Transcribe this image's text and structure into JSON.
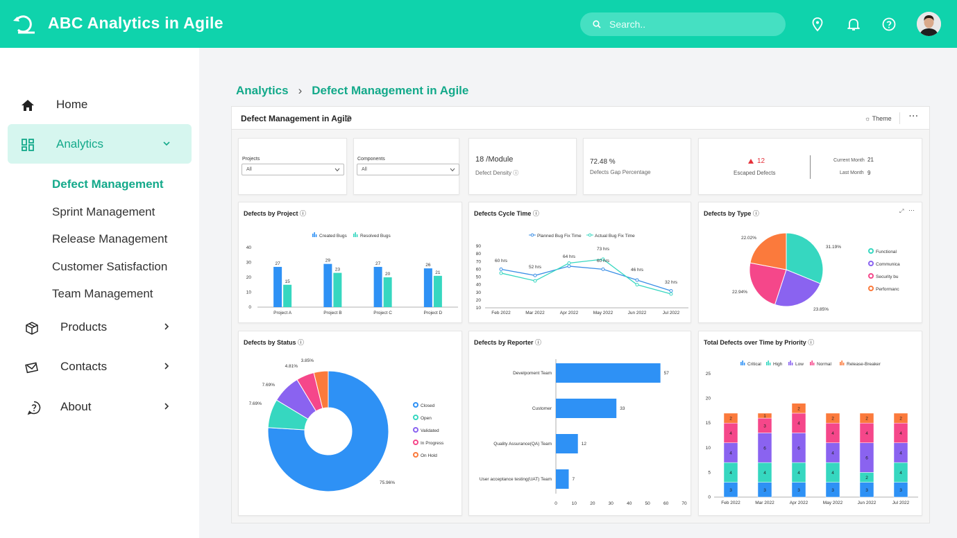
{
  "app": {
    "title": "ABC Analytics in Agile",
    "search_placeholder": "Search.."
  },
  "sidebar": {
    "home": "Home",
    "analytics": "Analytics",
    "sub": [
      "Defect Management",
      "Sprint Management",
      "Release Management",
      "Customer Satisfaction",
      "Team Management"
    ],
    "products": "Products",
    "contacts": "Contacts",
    "about": "About"
  },
  "breadcrumb": {
    "root": "Analytics",
    "sep": "›",
    "current": "Defect Management in Agile"
  },
  "dashboard": {
    "title": "Defect Management in Agile",
    "theme_label": "Theme",
    "more": "···"
  },
  "filters": {
    "projects_label": "Projects",
    "projects_value": "All",
    "components_label": "Components",
    "components_value": "All"
  },
  "kpis": {
    "density_value": "18 /Module",
    "density_label": "Defect Density",
    "gap_value": "72.48 %",
    "gap_label": "Defects Gap Percentage",
    "escaped_value": "12",
    "escaped_label": "Escaped Defects",
    "current_label": "Current Month",
    "current_value": "21",
    "last_label": "Last Month",
    "last_value": "9"
  },
  "colors": {
    "accent": "#0fd3ac",
    "blue": "#2e91f5",
    "teal": "#36d7c0",
    "purple": "#8a63f0",
    "pink": "#f5478a",
    "orange": "#fb7a3c"
  },
  "chart_data": [
    {
      "id": "by_project",
      "type": "bar",
      "title": "Defects by Project",
      "categories": [
        "Project A",
        "Project B",
        "Project C",
        "Project D"
      ],
      "series": [
        {
          "name": "Created Bugs",
          "values": [
            27,
            29,
            27,
            26
          ]
        },
        {
          "name": "Resolved Bugs",
          "values": [
            15,
            23,
            20,
            21
          ]
        }
      ],
      "ylim": [
        0,
        40
      ],
      "yticks": [
        0,
        10,
        20,
        30,
        40
      ]
    },
    {
      "id": "cycle_time",
      "type": "line",
      "title": "Defects Cycle Time",
      "categories": [
        "Feb 2022",
        "Mar 2022",
        "Apr 2022",
        "May 2022",
        "Jun 2022",
        "Jul 2022"
      ],
      "series": [
        {
          "name": "Planned Bug Fix Time",
          "values": [
            60,
            52,
            64,
            60,
            46,
            32
          ]
        },
        {
          "name": "Actual Bug Fix Time",
          "values": [
            55,
            45,
            68,
            73,
            40,
            28
          ]
        }
      ],
      "labels": [
        "60 hrs",
        "52 hrs",
        "64 hrs",
        "73 hrs",
        "60 hrs",
        "46 hrs",
        "32 hrs"
      ],
      "ylim": [
        10,
        90
      ],
      "yticks": [
        10,
        20,
        30,
        40,
        50,
        60,
        70,
        80,
        90
      ]
    },
    {
      "id": "by_type",
      "type": "pie",
      "title": "Defects by Type",
      "categories": [
        "Functional Defects",
        "Communication Defects",
        "Security bugs",
        "Performance Defects"
      ],
      "legend_labels": [
        "Functional",
        "Communica",
        "Security bu",
        "Performanc"
      ],
      "values": [
        31.19,
        23.85,
        22.94,
        22.02
      ],
      "value_labels": [
        "31.19%",
        "23.85%",
        "22.94%",
        "22.02%"
      ]
    },
    {
      "id": "by_status",
      "type": "pie",
      "title": "Defects by Status",
      "categories": [
        "Closed",
        "Open",
        "Validated",
        "In Progress",
        "On Hold"
      ],
      "values": [
        75.96,
        7.69,
        7.69,
        4.81,
        3.85
      ],
      "value_labels": [
        "75.96%",
        "7.69%",
        "7.69%",
        "4.81%",
        "3.85%"
      ]
    },
    {
      "id": "by_reporter",
      "type": "bar",
      "title": "Defects by Reporter",
      "categories": [
        "Development Team",
        "Customer",
        "Quality Assurance(QA) Team",
        "User acceptance testing(UAT) Team"
      ],
      "display_categories": [
        "Develpoment Team",
        "Customer",
        "Quality Assurance(QA) Team",
        "User acceptance testing(UAT) Team"
      ],
      "values": [
        57,
        33,
        12,
        7
      ],
      "xlim": [
        0,
        70
      ],
      "xticks": [
        0,
        10,
        20,
        30,
        40,
        50,
        60,
        70
      ]
    },
    {
      "id": "by_priority",
      "type": "bar",
      "stacked": true,
      "title": "Total Defects over Time by Priority",
      "categories": [
        "Feb 2022",
        "Mar 2022",
        "Apr 2022",
        "May 2022",
        "Jun 2022",
        "Jul 2022"
      ],
      "series": [
        {
          "name": "Critical",
          "values": [
            3,
            3,
            3,
            3,
            3,
            3
          ]
        },
        {
          "name": "High",
          "values": [
            4,
            4,
            4,
            4,
            2,
            4
          ]
        },
        {
          "name": "Low",
          "values": [
            4,
            6,
            6,
            4,
            6,
            4
          ]
        },
        {
          "name": "Normal",
          "values": [
            4,
            3,
            4,
            4,
            4,
            4
          ]
        },
        {
          "name": "Release-Breaker",
          "values": [
            2,
            1,
            2,
            2,
            2,
            2
          ]
        }
      ],
      "ylim": [
        0,
        25
      ],
      "yticks": [
        0,
        5,
        10,
        15,
        20,
        25
      ]
    }
  ]
}
